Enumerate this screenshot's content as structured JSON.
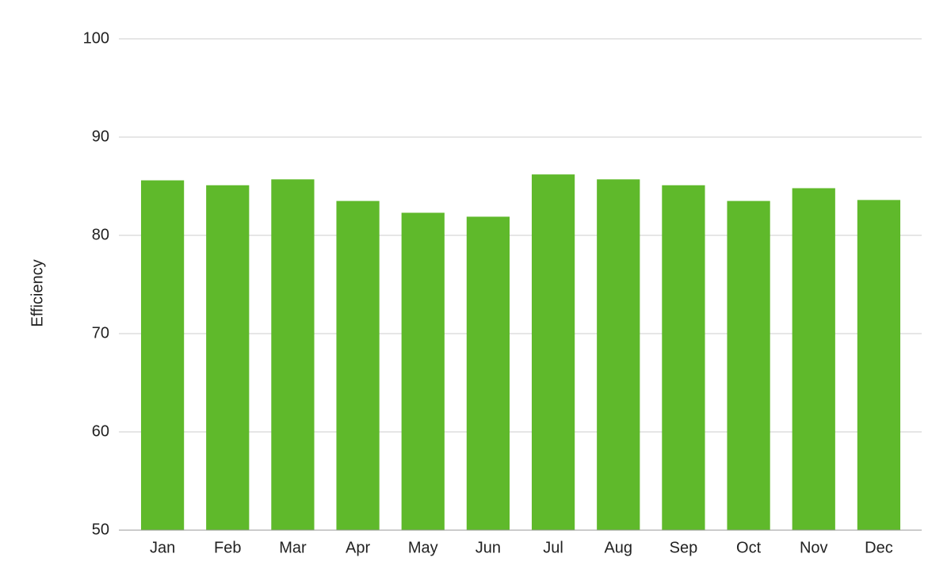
{
  "chart_data": {
    "type": "bar",
    "y_label": "Efficiency",
    "categories": [
      "Jan",
      "Feb",
      "Mar",
      "Apr",
      "May",
      "Jun",
      "Jul",
      "Aug",
      "Sep",
      "Oct",
      "Nov",
      "Dec"
    ],
    "values": [
      85.6,
      85.1,
      85.7,
      83.5,
      82.3,
      81.9,
      86.2,
      85.7,
      85.1,
      83.5,
      84.8,
      83.6
    ],
    "color": "#5fb92b",
    "ylim": [
      50,
      100
    ],
    "yticks": [
      50,
      60,
      70,
      80,
      90,
      100
    ],
    "grid": true
  }
}
